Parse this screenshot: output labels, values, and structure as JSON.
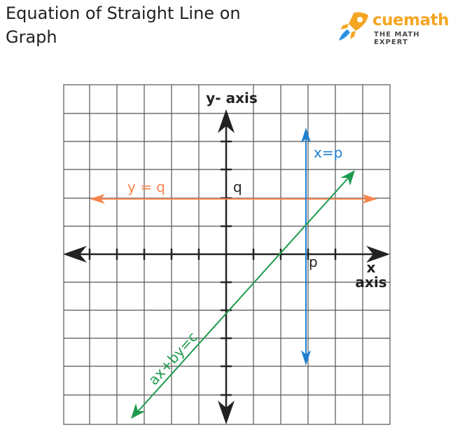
{
  "title": "Equation of Straight Line on Graph",
  "title_line1": "Equation of Straight Line on",
  "title_line2": "Graph",
  "logo": {
    "brand": "cuemath",
    "tagline": "THE MATH EXPERT"
  },
  "diagram": {
    "y_axis_label": "y- axis",
    "x_axis_label_1": "x",
    "x_axis_label_2": "axis",
    "line_x_eq_p": {
      "label": "x=p",
      "color": "#1e7fd1"
    },
    "line_y_eq_q": {
      "label": "y = q",
      "color": "#f5834a"
    },
    "line_general": {
      "label": "ax+by=c",
      "color": "#1e9a4e"
    },
    "point_p": "p",
    "point_q": "q",
    "axis_color": "#222222",
    "grid_color": "#555555"
  }
}
